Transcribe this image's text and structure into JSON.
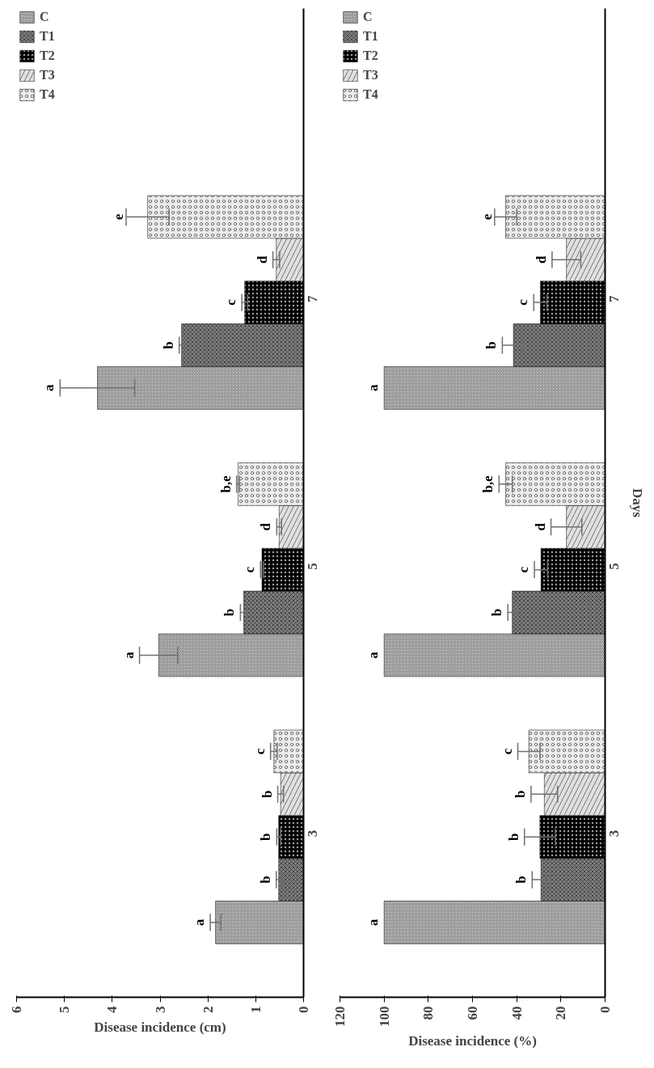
{
  "chart_data": [
    {
      "type": "bar",
      "orientation": "horizontal",
      "categories": [
        "7",
        "5",
        "3"
      ],
      "xlabel": "Disease incidence (cm)",
      "xlim": [
        6,
        0
      ],
      "xticks": [
        0,
        1,
        2,
        3,
        4,
        5,
        6
      ],
      "grid": false,
      "legend": "top left",
      "series": [
        {
          "name": "C",
          "color": "#d0d0d0",
          "values": [
            4.31,
            3.03,
            1.84
          ],
          "errors": [
            0.78,
            0.4,
            0.11
          ]
        },
        {
          "name": "T1",
          "color": "#808080",
          "values": [
            2.55,
            1.25,
            0.52
          ],
          "errors": [
            0.05,
            0.07,
            0.05
          ]
        },
        {
          "name": "T2",
          "color": "#000000",
          "values": [
            1.23,
            0.87,
            0.52
          ],
          "errors": [
            0.06,
            0.03,
            0.04
          ]
        },
        {
          "name": "T3",
          "color": "#e0e0e0",
          "values": [
            0.57,
            0.51,
            0.48
          ],
          "errors": [
            0.07,
            0.05,
            0.06
          ]
        },
        {
          "name": "T4",
          "color": "#ececec",
          "values": [
            3.26,
            1.37,
            0.62
          ],
          "errors": [
            0.45,
            0.03,
            0.07
          ]
        }
      ],
      "annotations": [
        "a",
        "b",
        "c",
        "d",
        "e",
        "a",
        "b",
        "c",
        "d",
        "b,e",
        "a",
        "b",
        "b",
        "b",
        "c"
      ]
    },
    {
      "type": "bar",
      "orientation": "horizontal",
      "categories": [
        "7",
        "5",
        "3"
      ],
      "xlabel": "Disease incidence (%)",
      "ylabel": "Days",
      "xlim": [
        120,
        0
      ],
      "xticks": [
        0,
        20,
        40,
        60,
        80,
        100,
        120
      ],
      "grid": false,
      "legend": "top left",
      "series": [
        {
          "name": "C",
          "color": "#d0d0d0",
          "values": [
            100,
            100,
            100
          ],
          "errors": [
            0,
            0,
            0
          ]
        },
        {
          "name": "T1",
          "color": "#808080",
          "values": [
            41.5,
            42,
            29
          ],
          "errors": [
            5,
            2,
            4
          ]
        },
        {
          "name": "T2",
          "color": "#000000",
          "values": [
            29.3,
            29,
            29.5
          ],
          "errors": [
            3,
            3,
            7
          ]
        },
        {
          "name": "T3",
          "color": "#e0e0e0",
          "values": [
            17.5,
            17.5,
            27.5
          ],
          "errors": [
            6.5,
            7,
            6
          ]
        },
        {
          "name": "T4",
          "color": "#ececec",
          "values": [
            45,
            45,
            34.5
          ],
          "errors": [
            5,
            3,
            5
          ]
        }
      ],
      "annotations": [
        "a",
        "b",
        "c",
        "d",
        "e",
        "a",
        "b",
        "c",
        "d",
        "b,e",
        "a",
        "b",
        "b",
        "b",
        "c"
      ]
    }
  ]
}
